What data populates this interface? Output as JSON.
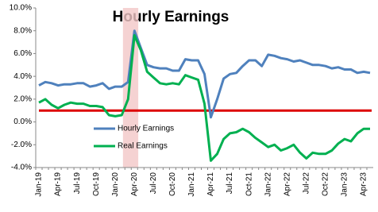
{
  "chart_data": {
    "type": "line",
    "title": "Hourly Earnings",
    "categories": [
      "Jan-19",
      null,
      null,
      "Apr-19",
      null,
      null,
      "Jul-19",
      null,
      null,
      "Oct-19",
      null,
      null,
      "Jan-20",
      null,
      null,
      "Apr-20",
      null,
      null,
      "Jul-20",
      null,
      null,
      "Oct-20",
      null,
      null,
      "Jan-21",
      null,
      null,
      "Apr-21",
      null,
      null,
      "Jul-21",
      null,
      null,
      "Oct-21",
      null,
      null,
      "Jan-22",
      null,
      null,
      "Apr-22",
      null,
      null,
      "Jul-22",
      null,
      null,
      "Oct-22",
      null,
      null,
      "Jan-23",
      null,
      null,
      "Apr-23",
      null
    ],
    "series": [
      {
        "name": "Hourly Earnings",
        "color": "#4f81bd",
        "values": [
          3.2,
          3.5,
          3.4,
          3.2,
          3.3,
          3.3,
          3.4,
          3.4,
          3.1,
          3.2,
          3.4,
          2.9,
          3.1,
          3.1,
          3.5,
          8.0,
          6.5,
          5.0,
          4.8,
          4.7,
          4.7,
          4.5,
          4.5,
          5.5,
          5.4,
          5.4,
          4.2,
          0.4,
          2.0,
          3.8,
          4.2,
          4.3,
          4.9,
          5.4,
          5.4,
          4.9,
          5.9,
          5.8,
          5.6,
          5.5,
          5.3,
          5.4,
          5.2,
          5.0,
          5.0,
          4.9,
          4.7,
          4.8,
          4.6,
          4.6,
          4.3,
          4.4,
          4.3
        ]
      },
      {
        "name": "Real Earnings",
        "color": "#00b050",
        "values": [
          1.7,
          2.0,
          1.5,
          1.2,
          1.5,
          1.7,
          1.6,
          1.6,
          1.4,
          1.4,
          1.3,
          0.6,
          0.5,
          0.6,
          2.0,
          7.6,
          6.3,
          4.4,
          3.9,
          3.4,
          3.3,
          3.4,
          3.3,
          4.1,
          3.9,
          3.7,
          1.6,
          -3.4,
          -2.8,
          -1.5,
          -1.0,
          -0.9,
          -0.6,
          -0.9,
          -1.4,
          -1.8,
          -2.2,
          -2.0,
          -2.5,
          -2.3,
          -2.0,
          -2.7,
          -3.2,
          -2.7,
          -2.8,
          -2.8,
          -2.5,
          -1.9,
          -1.5,
          -1.7,
          -1.0,
          -0.6,
          -0.6
        ]
      }
    ],
    "reference_line": {
      "value": 1,
      "color": "#dd0000"
    },
    "shaded_category": 15,
    "ylim": [
      -4,
      10
    ],
    "yticks": [
      {
        "value": -4,
        "label": "-4.0%"
      },
      {
        "value": -2,
        "label": "-2.0%"
      },
      {
        "value": 0,
        "label": "0.0%"
      },
      {
        "value": 2,
        "label": "2.0%"
      },
      {
        "value": 4,
        "label": "4.0%"
      },
      {
        "value": 6,
        "label": "6.0%"
      },
      {
        "value": 8,
        "label": "8.0%"
      },
      {
        "value": 10,
        "label": "10.0%"
      }
    ],
    "grid": false
  }
}
